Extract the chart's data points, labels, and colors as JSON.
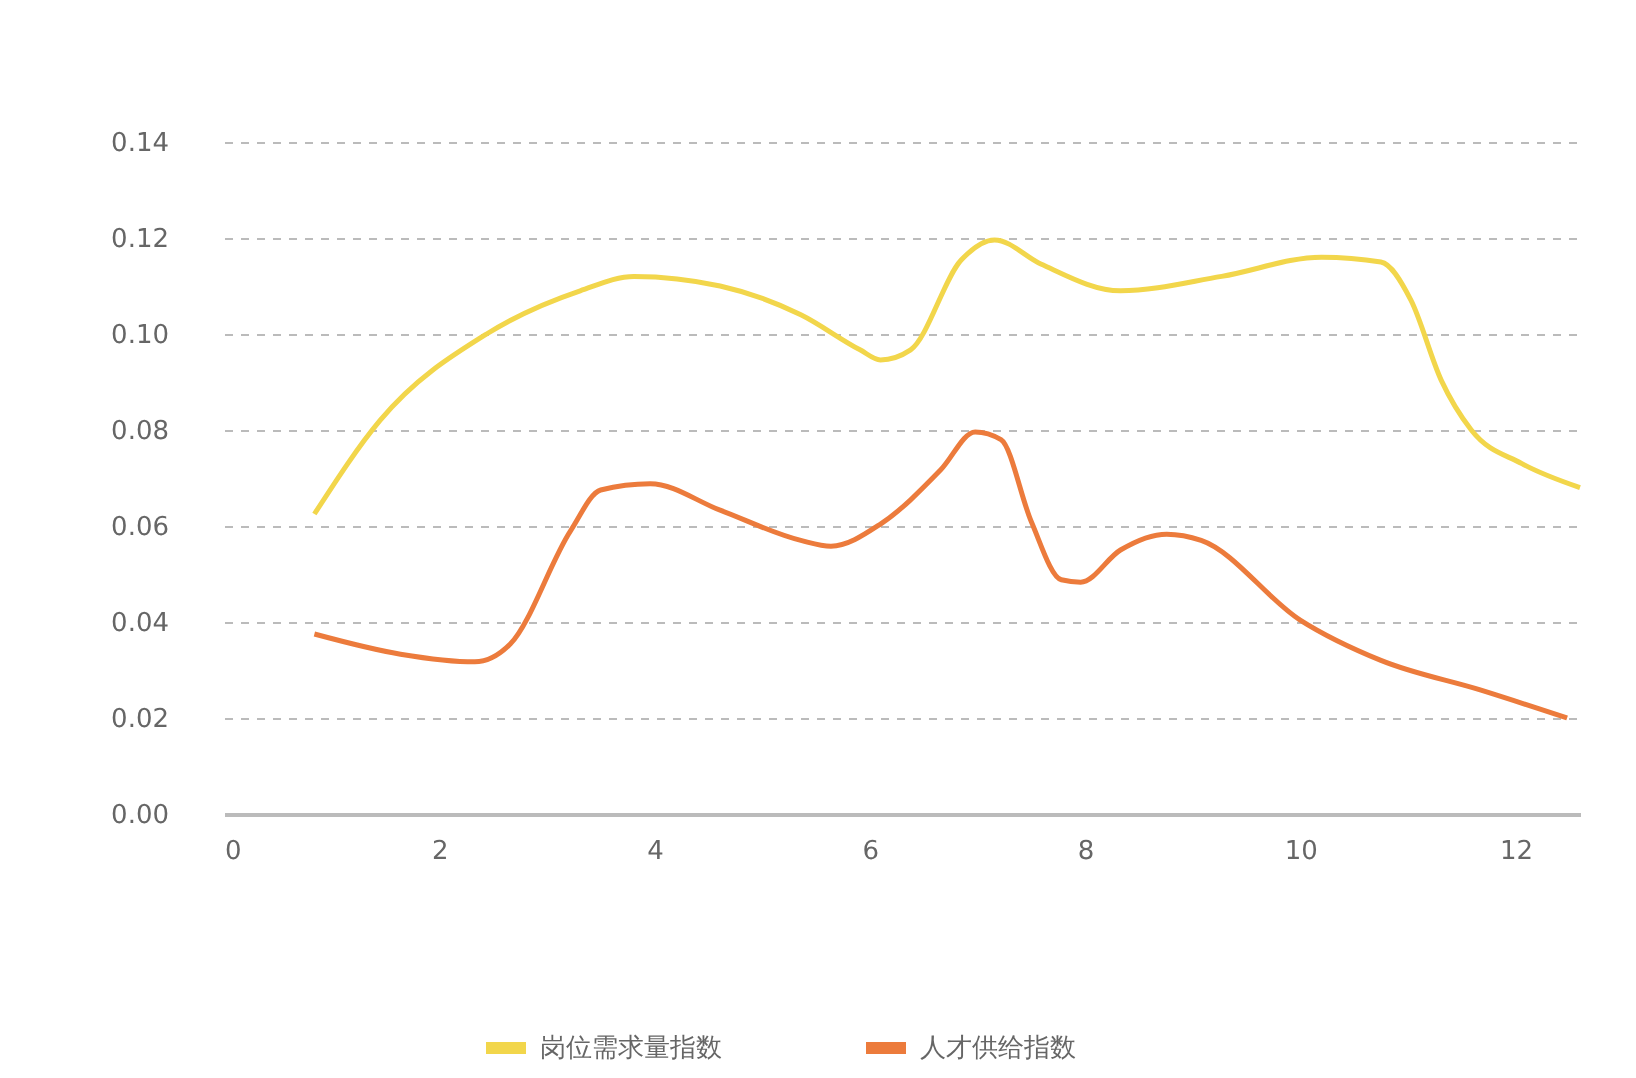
{
  "chart_data": {
    "type": "line",
    "xlim": [
      0,
      12.6
    ],
    "xticks": [
      0,
      2,
      4,
      6,
      8,
      10,
      12
    ],
    "ylim": [
      0,
      0.14
    ],
    "yticks": [
      {
        "value": 0,
        "label": "0.00"
      },
      {
        "value": 0.02,
        "label": "0.02"
      },
      {
        "value": 0.04,
        "label": "0.04"
      },
      {
        "value": 0.06,
        "label": "0.06"
      },
      {
        "value": 0.08,
        "label": "0.08"
      },
      {
        "value": 0.1,
        "label": "0.10"
      },
      {
        "value": 0.12,
        "label": "0.12"
      },
      {
        "value": 0.14,
        "label": "0.14"
      }
    ],
    "grid": "y",
    "legend": "bottom",
    "line_style": "solid",
    "series": [
      {
        "name": "岗位需求量指数",
        "color": "#f2d64b",
        "x": [
          0.84,
          1.45,
          2.44,
          3.31,
          3.81,
          4.61,
          5.36,
          5.91,
          6.1,
          6.38,
          6.85,
          7.16,
          7.59,
          8.33,
          9.27,
          10.2,
          10.75,
          11.03,
          11.31,
          11.59,
          12.06,
          12.6
        ],
        "values": [
          0.0625,
          0.082,
          0.1,
          0.109,
          0.112,
          0.11,
          0.104,
          0.0967,
          0.0946,
          0.0967,
          0.1154,
          0.1196,
          0.1146,
          0.109,
          0.112,
          0.116,
          0.115,
          0.107,
          0.0904,
          0.08,
          0.073,
          0.068
        ]
      },
      {
        "name": "人才供给指数",
        "color": "#ec7b3c",
        "x": [
          0.84,
          1.64,
          2.33,
          2.66,
          3.22,
          3.5,
          3.96,
          4.61,
          5.36,
          5.64,
          6.1,
          6.66,
          6.98,
          7.22,
          7.5,
          7.78,
          7.96,
          8.33,
          8.76,
          9.08,
          10.0,
          10.75,
          11.68,
          12.48
        ],
        "values": [
          0.0375,
          0.0333,
          0.0317,
          0.0354,
          0.059,
          0.0675,
          0.0688,
          0.0633,
          0.057,
          0.0558,
          0.0604,
          0.0717,
          0.0796,
          0.078,
          0.061,
          0.0488,
          0.0483,
          0.055,
          0.0583,
          0.057,
          0.0404,
          0.032,
          0.0258,
          0.02
        ]
      }
    ]
  }
}
